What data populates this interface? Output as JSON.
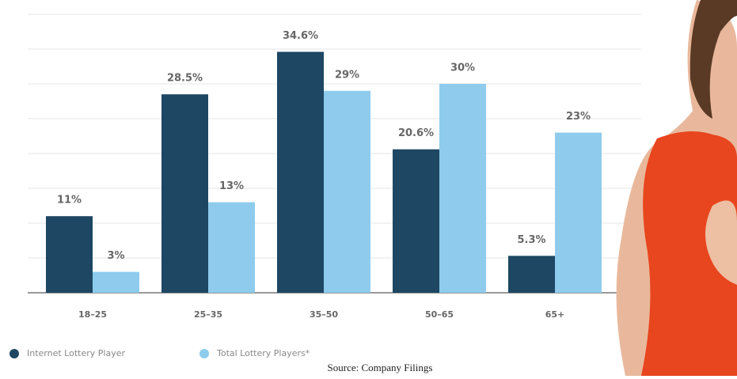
{
  "chart_data": {
    "type": "grouped_bar",
    "categories": [
      "18–25",
      "25–35",
      "35–50",
      "50–65",
      "65+"
    ],
    "series": [
      {
        "name": "Internet Lottery Player",
        "color": "#1d4763",
        "values": [
          11,
          28.5,
          34.6,
          20.6,
          5.3
        ],
        "value_labels": [
          "11%",
          "28.5%",
          "34.6%",
          "20.6%",
          "5.3%"
        ]
      },
      {
        "name": "Total Lottery Players*",
        "color": "#8ecbed",
        "values": [
          3,
          13,
          29,
          30,
          23
        ],
        "value_labels": [
          "3%",
          "13%",
          "29%",
          "30%",
          "23%"
        ]
      }
    ],
    "ylim": [
      0,
      40
    ],
    "yticks": [
      0,
      5,
      10,
      15,
      20,
      25,
      30,
      35,
      40
    ],
    "grid": true,
    "source": "Source: Company Filings"
  }
}
